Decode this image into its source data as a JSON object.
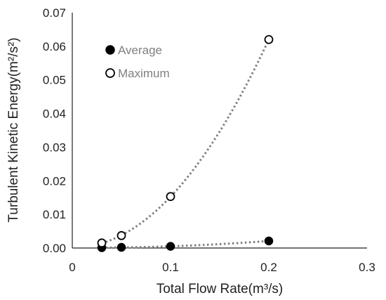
{
  "chart_data": {
    "type": "scatter",
    "title": "",
    "xlabel": "Total Flow Rate(m³/s)",
    "ylabel": "Turbulent Kinetic Energy(m²/s²)",
    "xlim": [
      0,
      0.3
    ],
    "ylim": [
      0,
      0.07
    ],
    "x_ticks": [
      "0",
      "0.1",
      "0.2",
      "0.3"
    ],
    "y_ticks": [
      "0.00",
      "0.01",
      "0.02",
      "0.03",
      "0.04",
      "0.05",
      "0.06",
      "0.07"
    ],
    "grid": false,
    "legend_position": "top-left",
    "trendline_style": "dotted",
    "trendline_color": "#7f7f7f",
    "series": [
      {
        "name": "Average",
        "marker": "filled-circle",
        "color": "#000000",
        "x": [
          0.03,
          0.05,
          0.1,
          0.2
        ],
        "y": [
          0.0001,
          0.0002,
          0.0005,
          0.0021
        ]
      },
      {
        "name": "Maximum",
        "marker": "open-circle",
        "color": "#000000",
        "x": [
          0.03,
          0.05,
          0.1,
          0.2
        ],
        "y": [
          0.0015,
          0.0037,
          0.0153,
          0.062
        ]
      }
    ]
  }
}
